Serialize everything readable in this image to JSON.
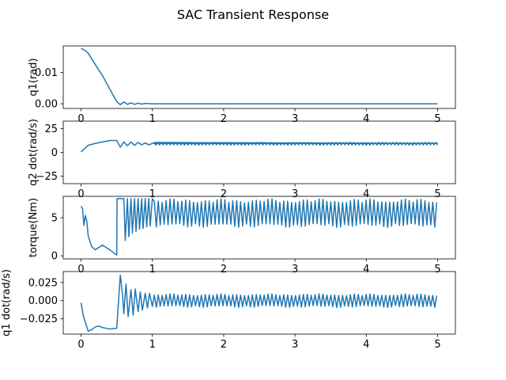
{
  "chart_data": {
    "title": "SAC Transient Response",
    "type": "line",
    "line_color": "#1f77b4",
    "subplots": [
      {
        "ylabel": "q1(rad)",
        "xlim": [
          -0.25,
          5.25
        ],
        "ylim": [
          -0.0015,
          0.0185
        ],
        "xticks": [
          0,
          1,
          2,
          3,
          4,
          5
        ],
        "xtick_labels": [
          "0",
          "1",
          "2",
          "3",
          "4",
          "5"
        ],
        "yticks": [
          0.0,
          0.01
        ],
        "ytick_labels": [
          "0.00",
          "0.01"
        ],
        "series": [
          {
            "x": [
              0.0,
              0.05,
              0.1,
              0.2,
              0.3,
              0.4,
              0.5,
              0.55,
              0.6,
              0.65,
              0.7,
              0.75,
              0.8,
              0.85,
              0.9,
              1.0,
              1.5,
              2.0,
              3.0,
              4.0,
              5.0
            ],
            "y": [
              0.0177,
              0.0172,
              0.0162,
              0.0125,
              0.009,
              0.0048,
              0.0007,
              -0.0003,
              0.0006,
              -0.0002,
              0.0003,
              -0.0002,
              0.0002,
              -0.0001,
              0.0001,
              0.0,
              0.0,
              0.0,
              0.0,
              0.0,
              0.0
            ]
          }
        ]
      },
      {
        "ylabel": "q2 dot(rad/s)",
        "xlim": [
          -0.25,
          5.25
        ],
        "ylim": [
          -33,
          33
        ],
        "xticks": [
          0,
          1,
          2,
          3,
          4,
          5
        ],
        "xtick_labels": [
          "0",
          "1",
          "2",
          "3",
          "4",
          "5"
        ],
        "yticks": [
          -25,
          0,
          25
        ],
        "ytick_labels": [
          "−25",
          "0",
          "25"
        ],
        "series": [
          {
            "x": [
              0.0,
              0.05,
              0.1,
              0.2,
              0.3,
              0.4,
              0.5,
              0.55,
              0.6,
              0.65,
              0.7,
              0.75,
              0.8,
              0.85,
              0.9,
              0.95,
              1.0,
              1.5,
              2.0,
              3.0,
              4.0,
              5.0
            ],
            "y": [
              0.5,
              4,
              7.5,
              9.5,
              11,
              12.5,
              12.5,
              5.5,
              11,
              7,
              11,
              7.5,
              10.5,
              8,
              10,
              8,
              9.5,
              9.5,
              9.5,
              9.5,
              9.5,
              9.5
            ],
            "oscillation": {
              "from_x": 1.0,
              "center": 9.2,
              "amplitude": 1.5,
              "period": 0.05
            }
          }
        ]
      },
      {
        "ylabel": "torque(Nm)",
        "xlim": [
          -0.25,
          5.25
        ],
        "ylim": [
          -0.4,
          7.8
        ],
        "xticks": [
          0,
          1,
          2,
          3,
          4,
          5
        ],
        "xtick_labels": [
          "0",
          "1",
          "2",
          "3",
          "4",
          "5"
        ],
        "yticks": [
          0,
          5
        ],
        "ytick_labels": [
          "0",
          "5"
        ],
        "series": [
          {
            "x": [
              0.0,
              0.02,
              0.04,
              0.06,
              0.08,
              0.1,
              0.15,
              0.2,
              0.3,
              0.4,
              0.5,
              0.505,
              0.55,
              0.6,
              0.62,
              0.65,
              0.67,
              0.7,
              0.72,
              0.75,
              0.77,
              0.8,
              0.82,
              0.85,
              0.87,
              0.9,
              0.92,
              0.95,
              0.97,
              1.0
            ],
            "y": [
              6.5,
              6.2,
              4.0,
              5.3,
              4.6,
              2.6,
              1.2,
              0.8,
              1.4,
              0.8,
              0.1,
              7.5,
              7.5,
              7.5,
              2.0,
              7.5,
              2.5,
              7.5,
              3.0,
              7.5,
              3.2,
              7.5,
              3.5,
              7.5,
              3.6,
              7.5,
              3.8,
              7.5,
              3.9,
              7.5
            ],
            "oscillation": {
              "from_x": 1.0,
              "center": 5.6,
              "amplitude": 1.9,
              "period": 0.055
            }
          }
        ]
      },
      {
        "ylabel": "q1 dot(rad/s)",
        "xlim": [
          -0.25,
          5.25
        ],
        "ylim": [
          -0.046,
          0.04
        ],
        "xticks": [
          0,
          1,
          2,
          3,
          4,
          5
        ],
        "xtick_labels": [
          "0",
          "1",
          "2",
          "3",
          "4",
          "5"
        ],
        "yticks": [
          -0.025,
          0.0,
          0.025
        ],
        "ytick_labels": [
          "−0.025",
          "0.000",
          "0.025"
        ],
        "series": [
          {
            "x": [
              0.0,
              0.03,
              0.06,
              0.1,
              0.15,
              0.2,
              0.25,
              0.3,
              0.4,
              0.5,
              0.55,
              0.58,
              0.6,
              0.63,
              0.66,
              0.7,
              0.73,
              0.76,
              0.8,
              0.83,
              0.86,
              0.9,
              0.93,
              0.96,
              1.0
            ],
            "y": [
              -0.003,
              -0.02,
              -0.03,
              -0.042,
              -0.04,
              -0.036,
              -0.035,
              -0.037,
              -0.039,
              -0.038,
              0.035,
              0.01,
              -0.018,
              0.023,
              -0.022,
              0.015,
              -0.02,
              0.016,
              -0.015,
              0.012,
              -0.013,
              0.01,
              -0.01,
              0.01,
              -0.008
            ],
            "oscillation": {
              "from_x": 1.0,
              "center": 0.0,
              "amplitude": 0.0095,
              "period": 0.055
            }
          }
        ]
      }
    ]
  }
}
